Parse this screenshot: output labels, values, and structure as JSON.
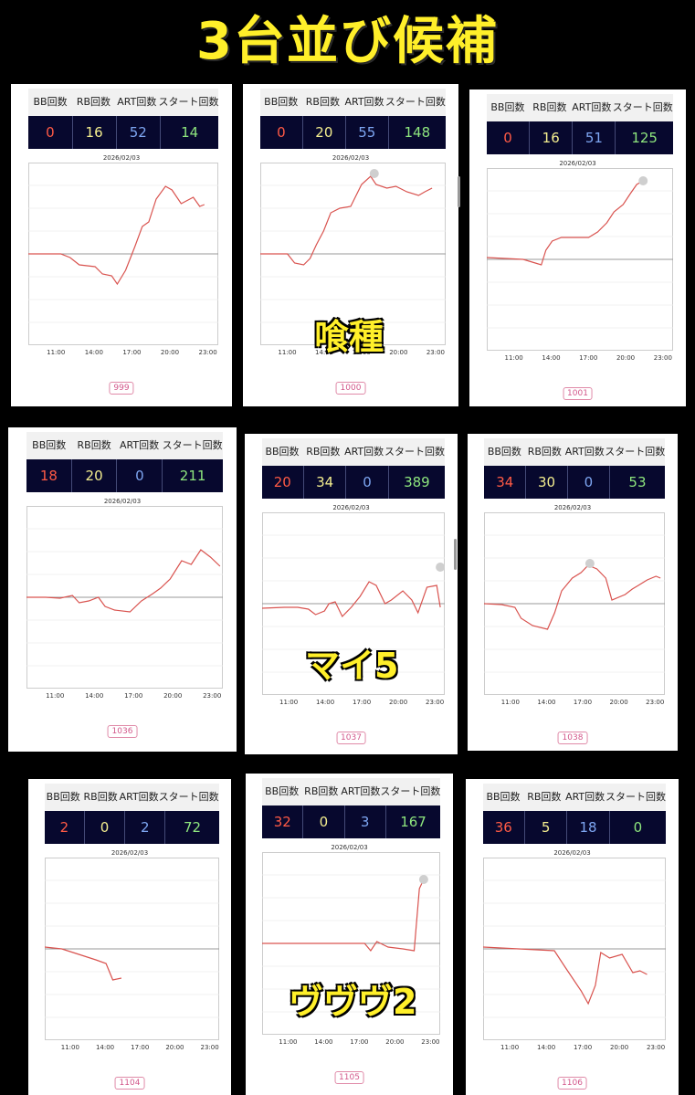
{
  "title": "3台並び候補",
  "headers": [
    "BB回数",
    "RB回数",
    "ART回数",
    "スタート回数"
  ],
  "date": "2026/02/03",
  "time_ticks": [
    "11:00",
    "14:00",
    "17:00",
    "20:00",
    "23:00"
  ],
  "panels": [
    {
      "machine": "999",
      "bb": "0",
      "rb": "16",
      "art": "52",
      "start": "14"
    },
    {
      "machine": "1000",
      "bb": "0",
      "rb": "20",
      "art": "55",
      "start": "148"
    },
    {
      "machine": "1001",
      "bb": "0",
      "rb": "16",
      "art": "51",
      "start": "125"
    },
    {
      "machine": "1036",
      "bb": "18",
      "rb": "20",
      "art": "0",
      "start": "211"
    },
    {
      "machine": "1037",
      "bb": "20",
      "rb": "34",
      "art": "0",
      "start": "389"
    },
    {
      "machine": "1038",
      "bb": "34",
      "rb": "30",
      "art": "0",
      "start": "53"
    },
    {
      "machine": "1104",
      "bb": "2",
      "rb": "0",
      "art": "2",
      "start": "72"
    },
    {
      "machine": "1105",
      "bb": "32",
      "rb": "0",
      "art": "3",
      "start": "167"
    },
    {
      "machine": "1106",
      "bb": "36",
      "rb": "5",
      "art": "18",
      "start": "0"
    }
  ],
  "overlays": [
    "喰種",
    "マイ5",
    "ヴヴヴ2"
  ],
  "colors": {
    "line": "#d9534f",
    "bb": "#ff5a45",
    "rb": "#f4ee8f",
    "art": "#7ea6f2",
    "start": "#8ee67e",
    "title": "#ffef2a"
  }
}
